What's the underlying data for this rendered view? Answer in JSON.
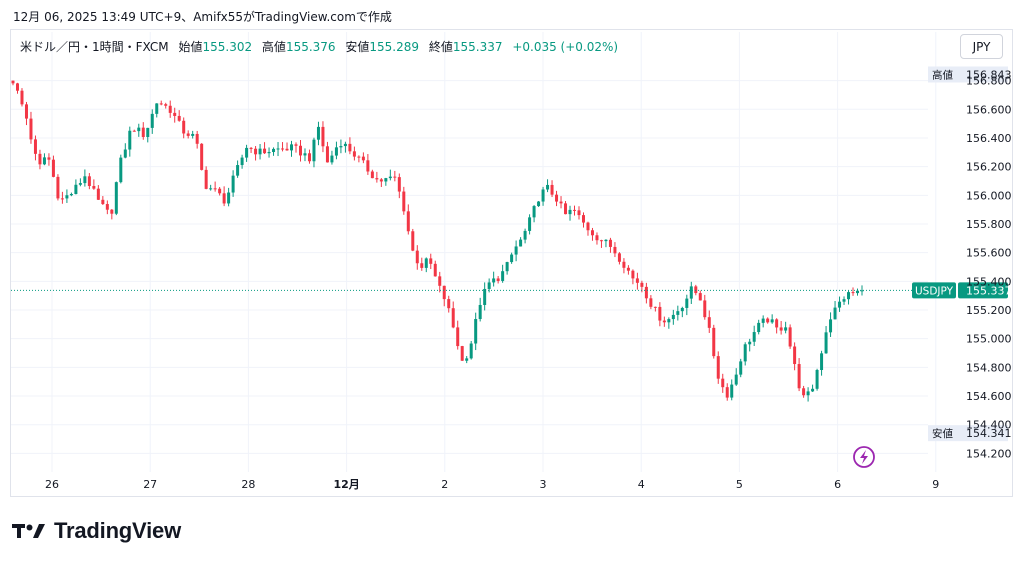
{
  "caption": "12月 06, 2025 13:49 UTC+9、Amifx55がTradingView.comで作成",
  "legend": {
    "symbol": "米ドル／円・1時間・FXCM",
    "open_label": "始値",
    "open": "155.302",
    "high_label": "高値",
    "high": "155.376",
    "low_label": "安値",
    "low": "155.289",
    "close_label": "終値",
    "close": "155.337",
    "change": "+0.035 (+0.02%)"
  },
  "currency_button": "JPY",
  "brand": "TradingView",
  "chart_data": {
    "type": "candlestick",
    "symbol": "USDJPY",
    "interval": "1h",
    "y_ticks": [
      154.2,
      154.4,
      154.6,
      154.8,
      155.0,
      155.2,
      155.4,
      155.6,
      155.8,
      156.0,
      156.2,
      156.4,
      156.6,
      156.8
    ],
    "ylim": [
      154.07,
      156.93
    ],
    "x_ticks": [
      {
        "label": "26",
        "bold": false
      },
      {
        "label": "27",
        "bold": false
      },
      {
        "label": "28",
        "bold": false
      },
      {
        "label": "12月",
        "bold": true
      },
      {
        "label": "2",
        "bold": false
      },
      {
        "label": "3",
        "bold": false
      },
      {
        "label": "4",
        "bold": false
      },
      {
        "label": "5",
        "bold": false
      },
      {
        "label": "6",
        "bold": false
      },
      {
        "label": "9",
        "bold": false
      }
    ],
    "price_tags": {
      "high": {
        "label": "高値",
        "value": "156.843"
      },
      "low": {
        "label": "安値",
        "value": "154.341"
      },
      "last": {
        "label": "USDJPY",
        "value": "155.337"
      }
    },
    "up_color": "#089981",
    "down_color": "#f23645",
    "path": [
      [
        0,
        156.8
      ],
      [
        3,
        156.56
      ],
      [
        6,
        156.18
      ],
      [
        8,
        156.3
      ],
      [
        11,
        155.96
      ],
      [
        14,
        156.02
      ],
      [
        17,
        156.14
      ],
      [
        20,
        155.96
      ],
      [
        23,
        155.85
      ],
      [
        25,
        156.2
      ],
      [
        28,
        156.48
      ],
      [
        31,
        156.42
      ],
      [
        34,
        156.66
      ],
      [
        37,
        156.6
      ],
      [
        40,
        156.45
      ],
      [
        43,
        156.4
      ],
      [
        45,
        156.08
      ],
      [
        48,
        156.02
      ],
      [
        50,
        155.96
      ],
      [
        52,
        156.12
      ],
      [
        55,
        156.34
      ],
      [
        58,
        156.3
      ],
      [
        62,
        156.32
      ],
      [
        66,
        156.33
      ],
      [
        70,
        156.26
      ],
      [
        72,
        156.48
      ],
      [
        74,
        156.22
      ],
      [
        77,
        156.38
      ],
      [
        80,
        156.3
      ],
      [
        83,
        156.2
      ],
      [
        86,
        156.1
      ],
      [
        90,
        156.12
      ],
      [
        92,
        155.92
      ],
      [
        94,
        155.62
      ],
      [
        96,
        155.5
      ],
      [
        98,
        155.55
      ],
      [
        100,
        155.38
      ],
      [
        102,
        155.26
      ],
      [
        104,
        155.05
      ],
      [
        106,
        154.82
      ],
      [
        108,
        154.98
      ],
      [
        110,
        155.25
      ],
      [
        112,
        155.38
      ],
      [
        114,
        155.42
      ],
      [
        116,
        155.48
      ],
      [
        118,
        155.62
      ],
      [
        120,
        155.7
      ],
      [
        122,
        155.84
      ],
      [
        124,
        156.0
      ],
      [
        126,
        156.05
      ],
      [
        128,
        155.98
      ],
      [
        130,
        155.86
      ],
      [
        132,
        155.9
      ],
      [
        135,
        155.78
      ],
      [
        138,
        155.7
      ],
      [
        141,
        155.64
      ],
      [
        144,
        155.52
      ],
      [
        146,
        155.42
      ],
      [
        148,
        155.38
      ],
      [
        150,
        155.26
      ],
      [
        152,
        155.16
      ],
      [
        154,
        155.12
      ],
      [
        156,
        155.18
      ],
      [
        158,
        155.25
      ],
      [
        160,
        155.35
      ],
      [
        162,
        155.28
      ],
      [
        164,
        155.05
      ],
      [
        166,
        154.75
      ],
      [
        168,
        154.6
      ],
      [
        170,
        154.72
      ],
      [
        172,
        154.92
      ],
      [
        174,
        155.02
      ],
      [
        176,
        155.1
      ],
      [
        178,
        155.14
      ],
      [
        180,
        155.06
      ],
      [
        182,
        155.1
      ],
      [
        184,
        154.82
      ],
      [
        186,
        154.58
      ],
      [
        188,
        154.62
      ],
      [
        190,
        154.85
      ],
      [
        192,
        155.12
      ],
      [
        194,
        155.22
      ],
      [
        196,
        155.3
      ],
      [
        200,
        155.337
      ]
    ]
  }
}
